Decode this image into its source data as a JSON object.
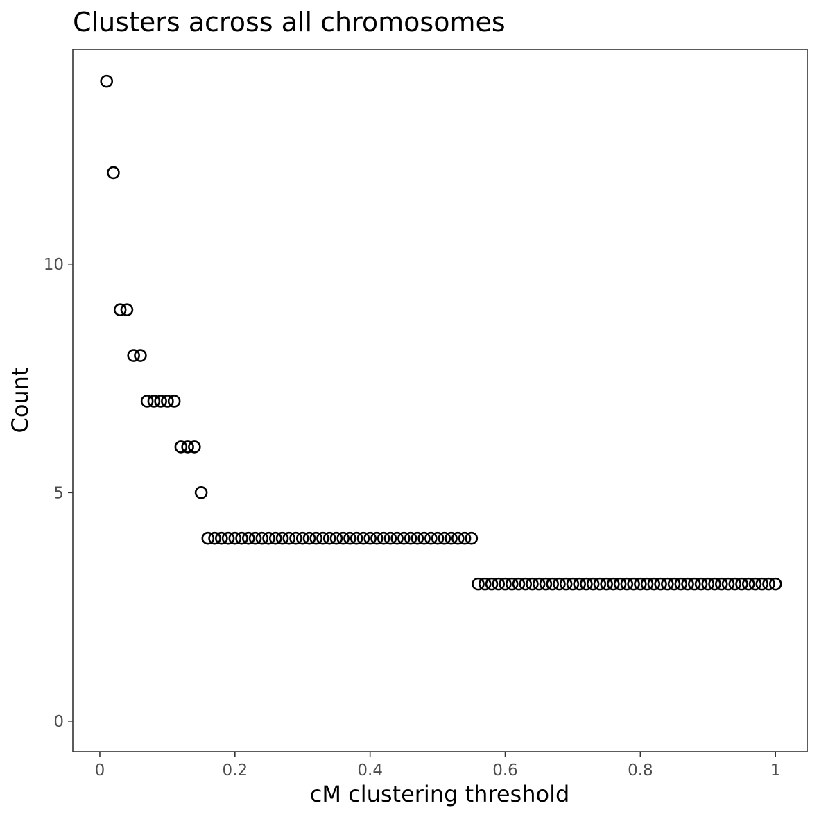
{
  "chart_data": {
    "type": "scatter",
    "title": "Clusters across all chromosomes",
    "xlabel": "cM clustering threshold",
    "ylabel": "Count",
    "xlim": [
      -0.04,
      1.047
    ],
    "ylim": [
      -0.67,
      14.7
    ],
    "x_ticks": [
      {
        "value": 0,
        "label": "0"
      },
      {
        "value": 0.2,
        "label": "0.2"
      },
      {
        "value": 0.4,
        "label": "0.4"
      },
      {
        "value": 0.6,
        "label": "0.6"
      },
      {
        "value": 0.8,
        "label": "0.8"
      },
      {
        "value": 1,
        "label": "1"
      }
    ],
    "y_ticks": [
      {
        "value": 0,
        "label": "0"
      },
      {
        "value": 5,
        "label": "5"
      },
      {
        "value": 10,
        "label": "10"
      }
    ],
    "grid": false,
    "legend": "none",
    "point_color": "#000000",
    "x": [
      0.01,
      0.02,
      0.03,
      0.04,
      0.05,
      0.06,
      0.07,
      0.08,
      0.09,
      0.1,
      0.11,
      0.12,
      0.13,
      0.14,
      0.15,
      0.16,
      0.17,
      0.18,
      0.19,
      0.2,
      0.21,
      0.22,
      0.23,
      0.24,
      0.25,
      0.26,
      0.27,
      0.28,
      0.29,
      0.3,
      0.31,
      0.32,
      0.33,
      0.34,
      0.35,
      0.36,
      0.37,
      0.38,
      0.39,
      0.4,
      0.41,
      0.42,
      0.43,
      0.44,
      0.45,
      0.46,
      0.47,
      0.48,
      0.49,
      0.5,
      0.51,
      0.52,
      0.53,
      0.54,
      0.55,
      0.56,
      0.57,
      0.58,
      0.59,
      0.6,
      0.61,
      0.62,
      0.63,
      0.64,
      0.65,
      0.66,
      0.67,
      0.68,
      0.69,
      0.7,
      0.71,
      0.72,
      0.73,
      0.74,
      0.75,
      0.76,
      0.77,
      0.78,
      0.79,
      0.8,
      0.81,
      0.82,
      0.83,
      0.84,
      0.85,
      0.86,
      0.87,
      0.88,
      0.89,
      0.9,
      0.91,
      0.92,
      0.93,
      0.94,
      0.95,
      0.96,
      0.97,
      0.98,
      0.99,
      1.0
    ],
    "y": [
      14,
      12,
      9,
      9,
      8,
      8,
      7,
      7,
      7,
      7,
      7,
      6,
      6,
      6,
      5,
      4,
      4,
      4,
      4,
      4,
      4,
      4,
      4,
      4,
      4,
      4,
      4,
      4,
      4,
      4,
      4,
      4,
      4,
      4,
      4,
      4,
      4,
      4,
      4,
      4,
      4,
      4,
      4,
      4,
      4,
      4,
      4,
      4,
      4,
      4,
      4,
      4,
      4,
      4,
      4,
      3,
      3,
      3,
      3,
      3,
      3,
      3,
      3,
      3,
      3,
      3,
      3,
      3,
      3,
      3,
      3,
      3,
      3,
      3,
      3,
      3,
      3,
      3,
      3,
      3,
      3,
      3,
      3,
      3,
      3,
      3,
      3,
      3,
      3,
      3,
      3,
      3,
      3,
      3,
      3,
      3,
      3,
      3,
      3,
      3
    ]
  }
}
